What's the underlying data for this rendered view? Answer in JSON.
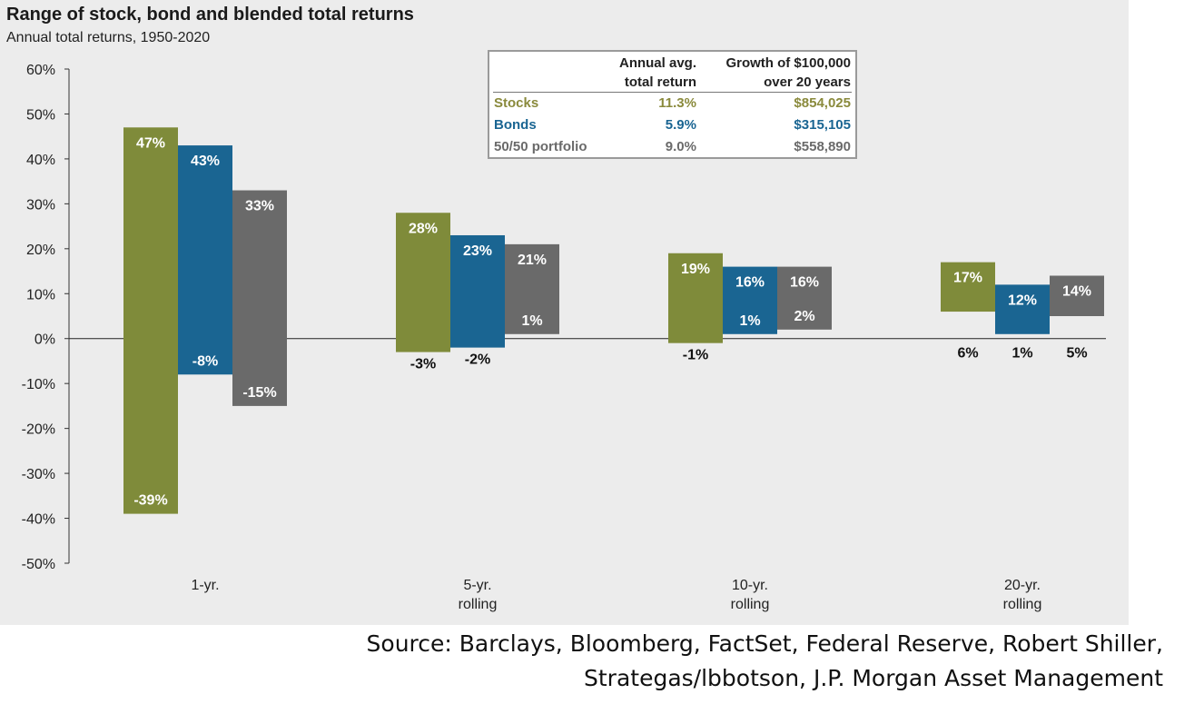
{
  "chart_data": {
    "type": "bar",
    "title": "Range of stock, bond and blended total returns",
    "subtitle": "Annual total returns, 1950-2020",
    "categories": [
      {
        "line1": "1-yr.",
        "line2": ""
      },
      {
        "line1": "5-yr.",
        "line2": "rolling"
      },
      {
        "line1": "10-yr.",
        "line2": "rolling"
      },
      {
        "line1": "20-yr.",
        "line2": "rolling"
      }
    ],
    "series": [
      {
        "name": "Stocks",
        "color": "#7f8b3a",
        "high": [
          47,
          28,
          19,
          17
        ],
        "low": [
          -39,
          -3,
          -1,
          6
        ],
        "high_labels": [
          "47%",
          "28%",
          "19%",
          "17%"
        ],
        "low_labels": [
          "-39%",
          "-3%",
          "-1%",
          "6%"
        ]
      },
      {
        "name": "Bonds",
        "color": "#1a6592",
        "high": [
          43,
          23,
          16,
          12
        ],
        "low": [
          -8,
          -2,
          1,
          1
        ],
        "high_labels": [
          "43%",
          "23%",
          "16%",
          "12%"
        ],
        "low_labels": [
          "-8%",
          "-2%",
          "1%",
          "1%"
        ]
      },
      {
        "name": "50/50 portfolio",
        "color": "#6a6a6a",
        "high": [
          33,
          21,
          16,
          14
        ],
        "low": [
          -15,
          1,
          2,
          5
        ],
        "high_labels": [
          "33%",
          "21%",
          "16%",
          "14%"
        ],
        "low_labels": [
          "-15%",
          "1%",
          "2%",
          "5%"
        ]
      }
    ],
    "ylim": [
      -50,
      60
    ],
    "yticks": [
      60,
      50,
      40,
      30,
      20,
      10,
      0,
      -10,
      -20,
      -30,
      -40,
      -50
    ],
    "ytick_labels": [
      "60%",
      "50%",
      "40%",
      "30%",
      "20%",
      "10%",
      "0%",
      "-10%",
      "-20%",
      "-30%",
      "-40%",
      "-50%"
    ],
    "grid": false
  },
  "summary_table": {
    "header_col2_line1": "Annual avg.",
    "header_col2_line2": "total return",
    "header_col3_line1": "Growth of $100,000",
    "header_col3_line2": "over 20 years",
    "rows": [
      {
        "name": "Stocks",
        "avg": "11.3%",
        "growth": "$854,025",
        "color": "#8a8a3c"
      },
      {
        "name": "Bonds",
        "avg": "5.9%",
        "growth": "$315,105",
        "color": "#1a6592"
      },
      {
        "name": "50/50 portfolio",
        "avg": "9.0%",
        "growth": "$558,890",
        "color": "#6a6a6a"
      }
    ]
  },
  "source": {
    "line1": "Source: Barclays, Bloomberg, FactSet, Federal Reserve, Robert Shiller,",
    "line2": "Strategas/lbbotson, J.P. Morgan Asset Management"
  }
}
